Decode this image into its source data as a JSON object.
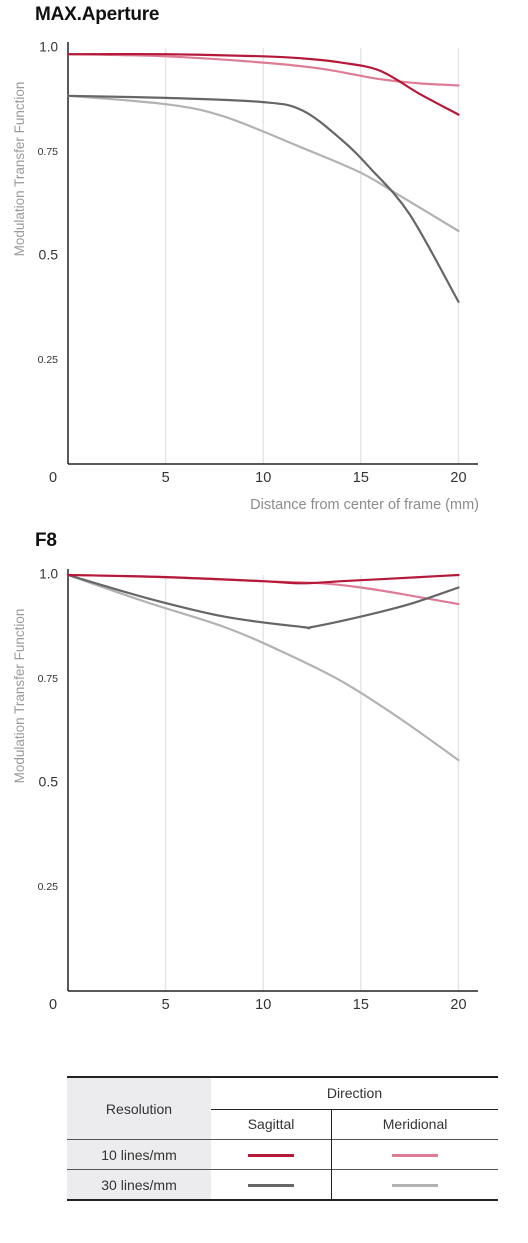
{
  "chart_data": [
    {
      "type": "line",
      "title": "MAX.Aperture",
      "xlabel": "Distance from center of frame (mm)",
      "ylabel": "Modulation Transfer Function",
      "xlim": [
        0,
        21
      ],
      "ylim": [
        0,
        1.0
      ],
      "x_ticks": [
        "0",
        "5",
        "10",
        "15",
        "20"
      ],
      "y_ticks": [
        "1.0",
        "0.75",
        "0.5",
        "0.25"
      ],
      "grid": "vertical",
      "series": [
        {
          "key": "s10",
          "x": [
            0,
            5,
            10,
            12,
            14,
            16,
            18,
            20
          ],
          "values": [
            0.985,
            0.985,
            0.98,
            0.975,
            0.965,
            0.945,
            0.89,
            0.84
          ]
        },
        {
          "key": "m10",
          "x": [
            0,
            5,
            10,
            13,
            16,
            18,
            20
          ],
          "values": [
            0.985,
            0.98,
            0.965,
            0.95,
            0.925,
            0.915,
            0.91
          ]
        },
        {
          "key": "s30",
          "x": [
            0,
            5,
            10,
            12,
            14,
            15.5,
            17.5,
            20
          ],
          "values": [
            0.885,
            0.88,
            0.87,
            0.85,
            0.78,
            0.71,
            0.6,
            0.39
          ]
        },
        {
          "key": "m30",
          "x": [
            0,
            5,
            8,
            12,
            15,
            17,
            20
          ],
          "values": [
            0.885,
            0.865,
            0.835,
            0.76,
            0.7,
            0.645,
            0.56
          ]
        }
      ]
    },
    {
      "type": "line",
      "title": "F8",
      "xlabel": "",
      "ylabel": "Modulation Transfer Function",
      "xlim": [
        0,
        21
      ],
      "ylim": [
        0,
        1.0
      ],
      "x_ticks": [
        "0",
        "5",
        "10",
        "15",
        "20"
      ],
      "y_ticks": [
        "1.0",
        "0.75",
        "0.5",
        "0.25"
      ],
      "grid": "vertical",
      "series": [
        {
          "key": "s10",
          "x": [
            0,
            5,
            10,
            12,
            14,
            16,
            18,
            20
          ],
          "values": [
            1.0,
            0.995,
            0.985,
            0.98,
            0.985,
            0.99,
            0.995,
            1.0
          ]
        },
        {
          "key": "m10",
          "x": [
            0,
            5,
            10,
            13,
            15,
            17,
            20
          ],
          "values": [
            1.0,
            0.995,
            0.985,
            0.98,
            0.97,
            0.955,
            0.93
          ]
        },
        {
          "key": "s30",
          "x": [
            0,
            4,
            8,
            12,
            12.5,
            15,
            17.5,
            20
          ],
          "values": [
            1.0,
            0.945,
            0.9,
            0.875,
            0.875,
            0.9,
            0.93,
            0.97
          ]
        },
        {
          "key": "m30",
          "x": [
            0,
            4,
            8,
            11,
            14,
            17,
            20
          ],
          "values": [
            1.0,
            0.935,
            0.875,
            0.815,
            0.745,
            0.655,
            0.555
          ]
        }
      ]
    }
  ],
  "colors": {
    "s10": "#b5193a",
    "m10": "#de7c96",
    "s30": "#666666",
    "m30": "#b2b2b2",
    "grid": "#e6e6e6",
    "axis": "#222222"
  },
  "legend": {
    "resolution_header": "Resolution",
    "direction_header": "Direction",
    "sagittal": "Sagittal",
    "meridional": "Meridional",
    "rows": [
      {
        "label": "10 lines/mm"
      },
      {
        "label": "30 lines/mm"
      }
    ]
  }
}
